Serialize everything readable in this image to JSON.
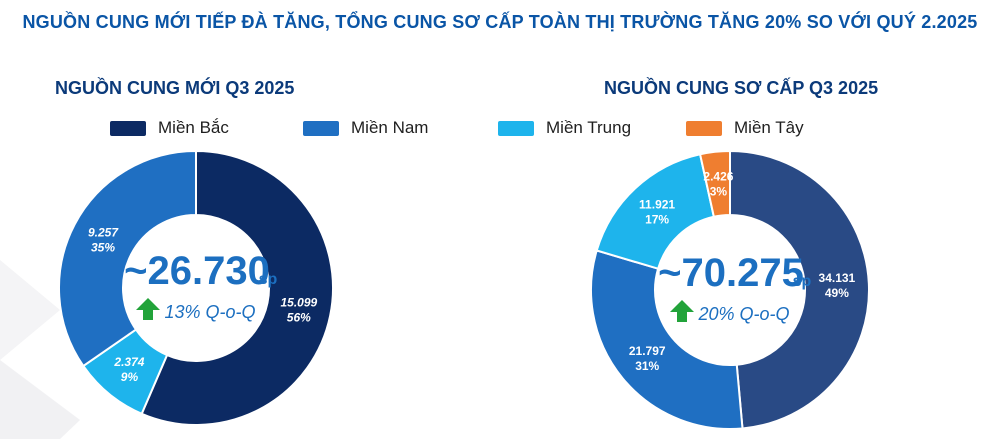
{
  "title": "NGUỒN CUNG MỚI TIẾP ĐÀ TĂNG, TỔNG CUNG SƠ CẤP TOÀN THỊ TRƯỜNG TĂNG 20% SO VỚI QUÝ 2.2025",
  "legend": [
    {
      "label": "Miền Bắc",
      "color": "#0c2a63"
    },
    {
      "label": "Miền Nam",
      "color": "#1f6fc2"
    },
    {
      "label": "Miền Trung",
      "color": "#1eb4ec"
    },
    {
      "label": "Miền Tây",
      "color": "#ef7e30"
    }
  ],
  "chart_data": [
    {
      "type": "pie",
      "title": "NGUỒN CUNG MỚI Q3 2025",
      "categories": [
        "Miền Bắc",
        "Miền Trung",
        "Miền Nam"
      ],
      "values": [
        15099,
        2374,
        9257
      ],
      "value_labels": [
        "15.099",
        "2.374",
        "9.257"
      ],
      "percent_labels": [
        "56%",
        "9%",
        "35%"
      ],
      "colors": [
        "#0c2a63",
        "#1eb4ec",
        "#1f6fc2"
      ],
      "center_value": "~26.730",
      "center_unit": "sp",
      "center_change": "13% Q-o-Q",
      "change_icon": "up-arrow-icon",
      "label_style": "italic"
    },
    {
      "type": "pie",
      "title": "NGUỒN CUNG SƠ CẤP Q3 2025",
      "categories": [
        "Miền Bắc",
        "Miền Nam",
        "Miền Trung",
        "Miền Tây"
      ],
      "values": [
        34131,
        21797,
        11921,
        2426
      ],
      "value_labels": [
        "34.131",
        "21.797",
        "11.921",
        "2.426"
      ],
      "percent_labels": [
        "49%",
        "31%",
        "17%",
        "3%"
      ],
      "colors": [
        "#294a85",
        "#1f6fc2",
        "#1eb4ec",
        "#ef7e30"
      ],
      "center_value": "~70.275",
      "center_unit": "sp",
      "center_change": "20% Q-o-Q",
      "change_icon": "up-arrow-icon",
      "label_style": "normal"
    }
  ]
}
